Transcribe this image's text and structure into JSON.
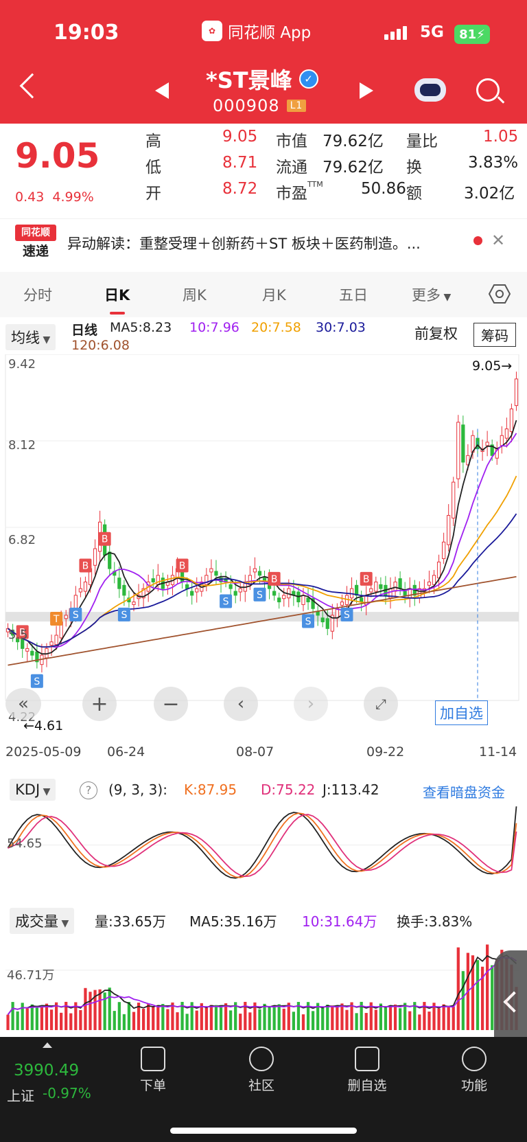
{
  "status_bar": {
    "time": "19:03",
    "app_name": "同花顺 App",
    "app_logo": "flush-logo-icon",
    "network": "5G",
    "battery": "81"
  },
  "header": {
    "name": "*ST景峰",
    "code": "000908",
    "level": "L1"
  },
  "quote": {
    "price": "9.05",
    "change": "0.43",
    "change_pct": "4.99%",
    "high_label": "高",
    "high": "9.05",
    "low_label": "低",
    "low": "8.71",
    "open_label": "开",
    "open": "8.72",
    "mktcap_label": "市值",
    "mktcap": "79.62亿",
    "float_label": "流通",
    "float": "79.62亿",
    "pe_label": "市盈",
    "pe_sup": "TTM",
    "pe": "50.86",
    "vol_ratio_label": "量比",
    "vol_ratio": "1.05",
    "turnover_label": "换",
    "turnover": "3.83%",
    "amount_label": "额",
    "amount": "3.02亿"
  },
  "news": {
    "logo_top": "同花顺",
    "logo_bottom": "速递",
    "text": "异动解读：重整受理＋创新药＋ST 板块＋医药制造。..."
  },
  "tabs": [
    "分时",
    "日K",
    "周K",
    "月K",
    "五日",
    "更多"
  ],
  "kline_header": {
    "ma_button": "均线",
    "period": "日线",
    "ma5": "MA5:8.23",
    "ma10": "10:7.96",
    "ma20": "20:7.58",
    "ma30": "30:7.03",
    "ma120": "120:6.08",
    "adjust": "前复权",
    "chips": "筹码"
  },
  "kline_axis": {
    "y_labels": [
      "9.42",
      "8.12",
      "6.82",
      "5.5",
      "4.22"
    ],
    "max_label": "9.05→",
    "min_label": "←4.61",
    "dates": [
      "2025-05-09",
      "06-24",
      "08-07",
      "09-22",
      "11-14"
    ]
  },
  "kline_controls": {
    "add_watch": "加自选"
  },
  "kdj": {
    "name": "KDJ",
    "params": "(9, 3, 3):",
    "k": "K:87.95",
    "d": "D:75.22",
    "j": "J:113.42",
    "dark_pool": "查看暗盘资金",
    "y_label": "54.65"
  },
  "volume": {
    "name": "成交量",
    "vol": "量:33.65万",
    "ma5": "MA5:35.16万",
    "ma10": "10:31.64万",
    "turnover": "换手:3.83%",
    "y_label": "46.71万"
  },
  "nav": {
    "index_value": "3990.49",
    "index_name": "上证",
    "index_change": "-0.97%",
    "items": [
      {
        "label": "下单"
      },
      {
        "label": "社区"
      },
      {
        "label": "删自选"
      },
      {
        "label": "功能"
      }
    ]
  },
  "colors": {
    "up": "#e8313a",
    "down": "#2db83d",
    "ma5": "#222222",
    "ma10": "#a020f0",
    "ma20": "#f0a000",
    "ma30": "#1a1a9a",
    "ma120": "#a0522d"
  },
  "chart_data": {
    "type": "candlestick",
    "x_start": "2025-05-09",
    "x_end": "2025-11-14",
    "ylim": [
      4.22,
      9.42
    ],
    "closes": [
      5.3,
      5.2,
      5.1,
      5.0,
      5.0,
      4.9,
      4.8,
      4.9,
      5.0,
      5.1,
      5.2,
      5.4,
      5.5,
      5.6,
      5.8,
      5.9,
      6.0,
      6.2,
      6.5,
      6.9,
      6.4,
      6.2,
      6.1,
      5.9,
      5.8,
      5.7,
      5.7,
      5.8,
      5.9,
      6.0,
      6.0,
      6.1,
      5.9,
      6.0,
      6.1,
      6.2,
      6.0,
      5.9,
      5.8,
      5.9,
      6.0,
      6.1,
      6.2,
      6.1,
      6.0,
      6.0,
      5.9,
      5.8,
      5.9,
      6.0,
      6.1,
      6.2,
      6.1,
      6.0,
      5.9,
      5.8,
      5.7,
      5.8,
      5.9,
      5.8,
      5.7,
      5.8,
      5.7,
      5.6,
      5.5,
      5.4,
      5.3,
      5.5,
      5.6,
      5.7,
      5.8,
      5.9,
      5.8,
      5.7,
      5.8,
      5.9,
      6.0,
      5.9,
      5.8,
      5.9,
      6.0,
      5.9,
      5.8,
      5.9,
      5.8,
      5.9,
      5.9,
      6.0,
      6.1,
      6.3,
      6.6,
      7.0,
      7.5,
      8.4,
      7.8,
      7.9,
      8.2,
      8.0,
      8.0,
      8.1,
      7.9,
      8.0,
      8.2,
      8.3,
      8.6,
      9.05
    ],
    "ma5_last": 8.23,
    "ma10_last": 7.96,
    "ma20_last": 7.58,
    "ma30_last": 7.03,
    "ma120_last": 6.08,
    "kdj_last": {
      "K": 87.95,
      "D": 75.22,
      "J": 113.42
    },
    "volume_last": 33.65,
    "volume_unit": "万"
  }
}
